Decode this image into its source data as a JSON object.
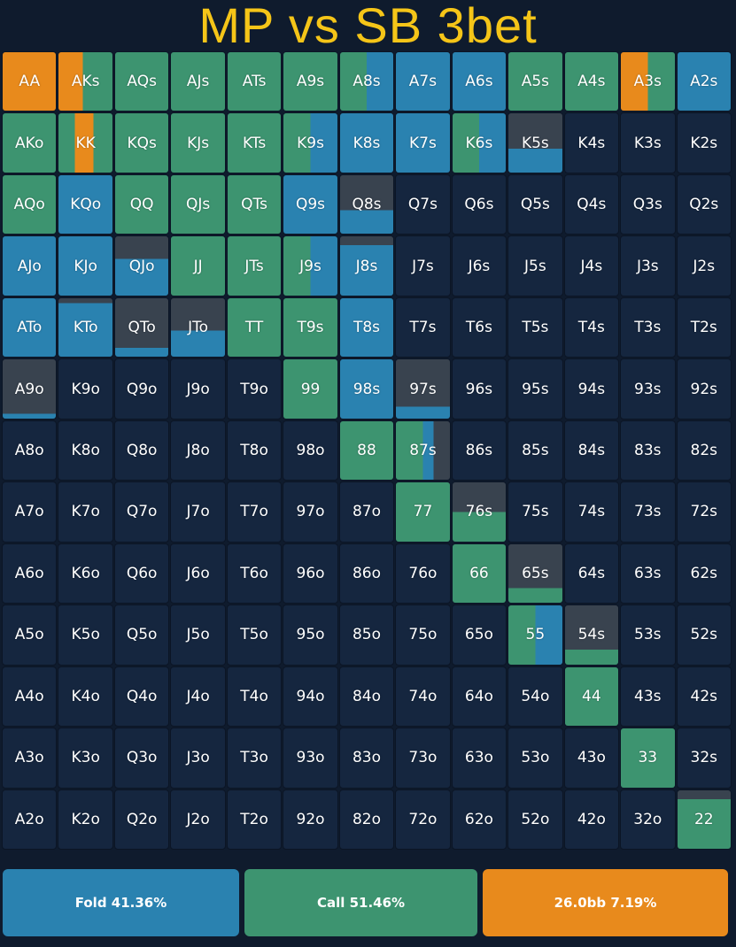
{
  "title": "MP vs SB 3bet",
  "colors": {
    "fold": "#2a82b0",
    "call": "#3d9470",
    "raise": "#e88a1c",
    "none": "#39434f",
    "empty": "#15263f"
  },
  "legend": [
    {
      "key": "fold",
      "label": "Fold 41.36%"
    },
    {
      "key": "call",
      "label": "Call 51.46%"
    },
    {
      "key": "raise",
      "label": "26.0bb 7.19%"
    }
  ],
  "chart_data": {
    "type": "heatmap",
    "title": "MP vs SB 3bet",
    "ranks": [
      "A",
      "K",
      "Q",
      "J",
      "T",
      "9",
      "8",
      "7",
      "6",
      "5",
      "4",
      "3",
      "2"
    ],
    "rows": [
      [
        "AA",
        "AKs",
        "AQs",
        "AJs",
        "ATs",
        "A9s",
        "A8s",
        "A7s",
        "A6s",
        "A5s",
        "A4s",
        "A3s",
        "A2s"
      ],
      [
        "AKo",
        "KK",
        "KQs",
        "KJs",
        "KTs",
        "K9s",
        "K8s",
        "K7s",
        "K6s",
        "K5s",
        "K4s",
        "K3s",
        "K2s"
      ],
      [
        "AQo",
        "KQo",
        "QQ",
        "QJs",
        "QTs",
        "Q9s",
        "Q8s",
        "Q7s",
        "Q6s",
        "Q5s",
        "Q4s",
        "Q3s",
        "Q2s"
      ],
      [
        "AJo",
        "KJo",
        "QJo",
        "JJ",
        "JTs",
        "J9s",
        "J8s",
        "J7s",
        "J6s",
        "J5s",
        "J4s",
        "J3s",
        "J2s"
      ],
      [
        "ATo",
        "KTo",
        "QTo",
        "JTo",
        "TT",
        "T9s",
        "T8s",
        "T7s",
        "T6s",
        "T5s",
        "T4s",
        "T3s",
        "T2s"
      ],
      [
        "A9o",
        "K9o",
        "Q9o",
        "J9o",
        "T9o",
        "99",
        "98s",
        "97s",
        "96s",
        "95s",
        "94s",
        "93s",
        "92s"
      ],
      [
        "A8o",
        "K8o",
        "Q8o",
        "J8o",
        "T8o",
        "98o",
        "88",
        "87s",
        "86s",
        "85s",
        "84s",
        "83s",
        "82s"
      ],
      [
        "A7o",
        "K7o",
        "Q7o",
        "J7o",
        "T7o",
        "97o",
        "87o",
        "77",
        "76s",
        "75s",
        "74s",
        "73s",
        "72s"
      ],
      [
        "A6o",
        "K6o",
        "Q6o",
        "J6o",
        "T6o",
        "96o",
        "86o",
        "76o",
        "66",
        "65s",
        "64s",
        "63s",
        "62s"
      ],
      [
        "A5o",
        "K5o",
        "Q5o",
        "J5o",
        "T5o",
        "95o",
        "85o",
        "75o",
        "65o",
        "55",
        "54s",
        "53s",
        "52s"
      ],
      [
        "A4o",
        "K4o",
        "Q4o",
        "J4o",
        "T4o",
        "94o",
        "84o",
        "74o",
        "64o",
        "54o",
        "44",
        "43s",
        "42s"
      ],
      [
        "A3o",
        "K3o",
        "Q3o",
        "J3o",
        "T3o",
        "93o",
        "83o",
        "73o",
        "63o",
        "53o",
        "43o",
        "33",
        "32s"
      ],
      [
        "A2o",
        "K2o",
        "Q2o",
        "J2o",
        "T2o",
        "92o",
        "82o",
        "72o",
        "62o",
        "52o",
        "42o",
        "32o",
        "22"
      ]
    ],
    "frequencies": {
      "AA": {
        "raise": 1.0
      },
      "AKs": {
        "raise": 0.45,
        "call": 0.55
      },
      "AQs": {
        "call": 1.0
      },
      "AJs": {
        "call": 1.0
      },
      "ATs": {
        "call": 1.0
      },
      "A9s": {
        "call": 1.0
      },
      "A8s": {
        "call": 0.5,
        "fold": 0.5
      },
      "A7s": {
        "fold": 1.0
      },
      "A6s": {
        "fold": 1.0
      },
      "A5s": {
        "call": 1.0
      },
      "A4s": {
        "call": 1.0
      },
      "A3s": {
        "raise": 0.5,
        "call": 0.5
      },
      "A2s": {
        "fold": 1.0
      },
      "AKo": {
        "call": 1.0
      },
      "KK": {
        "call": 0.35,
        "raise": 0.35,
        "call2": 0.3
      },
      "KQs": {
        "call": 1.0
      },
      "KJs": {
        "call": 1.0
      },
      "KTs": {
        "call": 1.0
      },
      "K9s": {
        "call": 0.5,
        "fold": 0.5
      },
      "K8s": {
        "fold": 1.0
      },
      "K7s": {
        "fold": 1.0
      },
      "K6s": {
        "call": 0.5,
        "fold": 0.5
      },
      "K5s": {
        "none": 0.6,
        "fold": 0.4
      },
      "AQo": {
        "call": 1.0
      },
      "KQo": {
        "fold": 1.0
      },
      "QQ": {
        "call": 1.0
      },
      "QJs": {
        "call": 1.0
      },
      "QTs": {
        "call": 1.0
      },
      "Q9s": {
        "fold": 1.0
      },
      "Q8s": {
        "none": 0.6,
        "fold": 0.4
      },
      "AJo": {
        "fold": 1.0
      },
      "KJo": {
        "fold": 1.0
      },
      "QJo": {
        "none": 0.38,
        "fold": 0.62
      },
      "JJ": {
        "call": 1.0
      },
      "JTs": {
        "call": 1.0
      },
      "J9s": {
        "call": 0.5,
        "fold": 0.5
      },
      "J8s": {
        "none": 0.15,
        "fold": 0.85
      },
      "ATo": {
        "fold": 1.0
      },
      "KTo": {
        "none": 0.08,
        "fold": 0.92
      },
      "QTo": {
        "none": 0.85,
        "fold": 0.15
      },
      "JTo": {
        "none": 0.55,
        "fold": 0.45
      },
      "TT": {
        "call": 1.0
      },
      "T9s": {
        "call": 1.0
      },
      "T8s": {
        "fold": 1.0
      },
      "A9o": {
        "none": 0.92,
        "fold": 0.08
      },
      "99": {
        "call": 1.0
      },
      "98s": {
        "fold": 1.0
      },
      "97s": {
        "none": 0.8,
        "fold": 0.2
      },
      "88": {
        "call": 1.0
      },
      "87s": {
        "none": 0.3,
        "call": 0.5,
        "fold": 0.2
      },
      "77": {
        "call": 1.0
      },
      "76s": {
        "none": 0.5,
        "call": 0.5
      },
      "66": {
        "call": 1.0
      },
      "65s": {
        "none": 0.75,
        "call": 0.25
      },
      "55": {
        "call": 0.5,
        "fold": 0.5
      },
      "54s": {
        "none": 0.75,
        "call": 0.25
      },
      "44": {
        "call": 1.0
      },
      "33": {
        "call": 1.0
      },
      "22": {
        "none": 0.15,
        "call": 0.85
      },
      "legend": {
        "fold": 41.36,
        "call": 51.46,
        "raise_26bb": 7.19
      }
    }
  }
}
